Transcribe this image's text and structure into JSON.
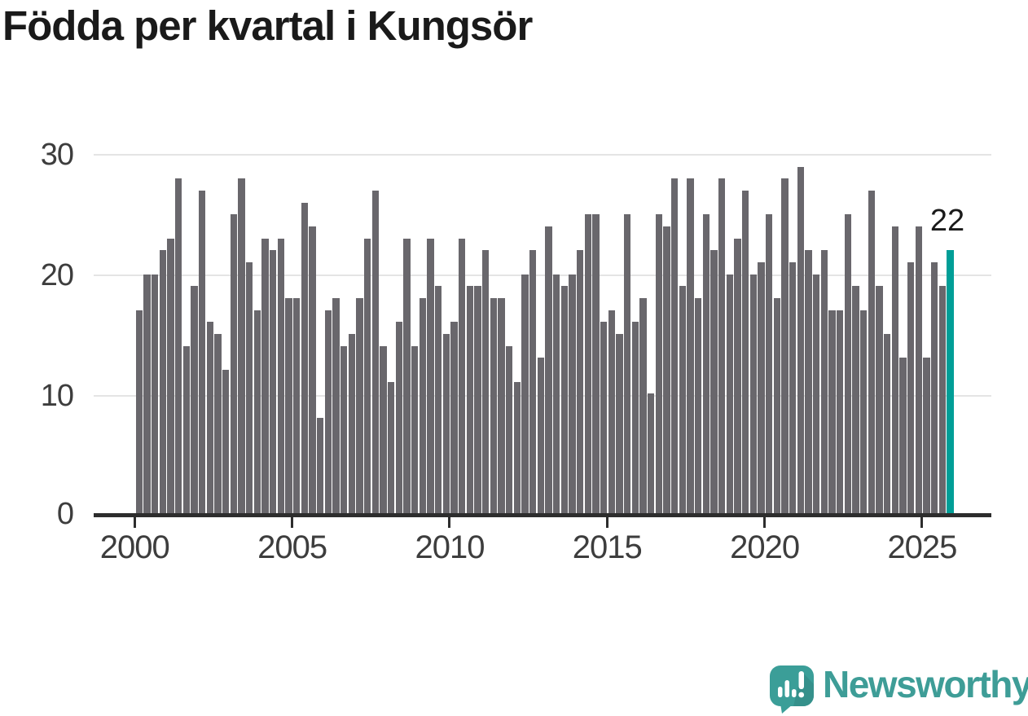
{
  "title": "Födda per kvartal i Kungsör",
  "chart_data": {
    "type": "bar",
    "title": "Födda per kvartal i Kungsör",
    "xlabel": "",
    "ylabel": "",
    "ylim": [
      0,
      30
    ],
    "grid": "horizontal",
    "x_tick_labels": [
      "2000",
      "2005",
      "2010",
      "2015",
      "2020",
      "2025"
    ],
    "y_tick_labels": [
      "30",
      "20",
      "10",
      "0"
    ],
    "frequency": "quarterly",
    "start_period": "2000-Q1",
    "end_period": "2025-Q4",
    "series": [
      {
        "name": "Födda",
        "values": [
          17,
          20,
          20,
          22,
          23,
          28,
          14,
          19,
          27,
          16,
          15,
          12,
          25,
          28,
          21,
          17,
          23,
          22,
          23,
          18,
          18,
          26,
          24,
          8,
          17,
          18,
          14,
          15,
          18,
          23,
          27,
          14,
          11,
          16,
          23,
          14,
          18,
          23,
          19,
          15,
          16,
          23,
          19,
          19,
          22,
          18,
          18,
          14,
          11,
          20,
          22,
          13,
          24,
          20,
          19,
          20,
          22,
          25,
          25,
          16,
          17,
          15,
          25,
          16,
          18,
          10,
          25,
          24,
          28,
          19,
          28,
          18,
          25,
          22,
          28,
          20,
          23,
          27,
          20,
          21,
          25,
          18,
          28,
          21,
          29,
          22,
          20,
          22,
          17,
          17,
          25,
          19,
          17,
          27,
          19,
          15,
          24,
          13,
          21,
          24,
          13,
          21,
          19,
          22
        ]
      }
    ],
    "highlight": {
      "index": 103,
      "value": 22,
      "label": "22"
    },
    "colors": {
      "bar": "#69676c",
      "highlight": "#009e97",
      "grid": "#e4e4e4",
      "axis": "#2d2d2d",
      "tick_label": "#3d3d3d",
      "title": "#1a1a1a"
    }
  },
  "annotation": {
    "last_value_label": "22"
  },
  "branding": {
    "name": "Newsworthy",
    "icon": "newsworthy-speech-bubble-chart-icon",
    "icon_color": "#3b9e98",
    "icon_shade_color": "#35908b",
    "text_color": "#3e9d97"
  }
}
